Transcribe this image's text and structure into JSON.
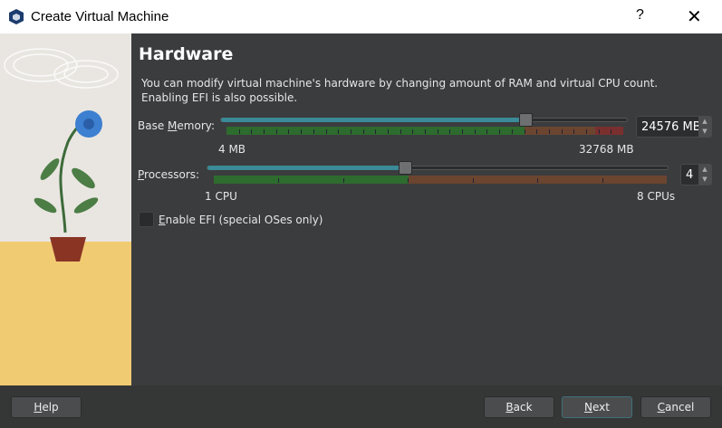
{
  "window": {
    "title": "Create Virtual Machine",
    "help": "?",
    "close": "✕"
  },
  "page": {
    "title": "Hardware",
    "description_line1": "You can modify virtual machine's hardware by changing amount of RAM and virtual CPU count.",
    "description_line2": "Enabling EFI is also possible."
  },
  "memory": {
    "label_pre": "Base ",
    "label_u": "M",
    "label_post": "emory:",
    "value": "24576 MB",
    "value_mb": 24576,
    "min_label": "4 MB",
    "max_label": "32768 MB",
    "min": 4,
    "max": 32768
  },
  "processors": {
    "label_u": "P",
    "label_post": "rocessors:",
    "value": "4",
    "value_n": 4,
    "min_label": "1 CPU",
    "max_label": "8 CPUs",
    "min": 1,
    "max": 8
  },
  "efi": {
    "label_u": "E",
    "label_post": "nable EFI (special OSes only)",
    "checked": false
  },
  "buttons": {
    "help_u": "H",
    "help_post": "elp",
    "back_u": "B",
    "back_post": "ack",
    "next_u": "N",
    "next_post": "ext",
    "cancel_u": "C",
    "cancel_post": "ancel"
  },
  "colors": {
    "accent": "#3a8a98",
    "ok": "#2e6b2e",
    "warn": "#6b4530",
    "bad": "#7a2f2f"
  }
}
